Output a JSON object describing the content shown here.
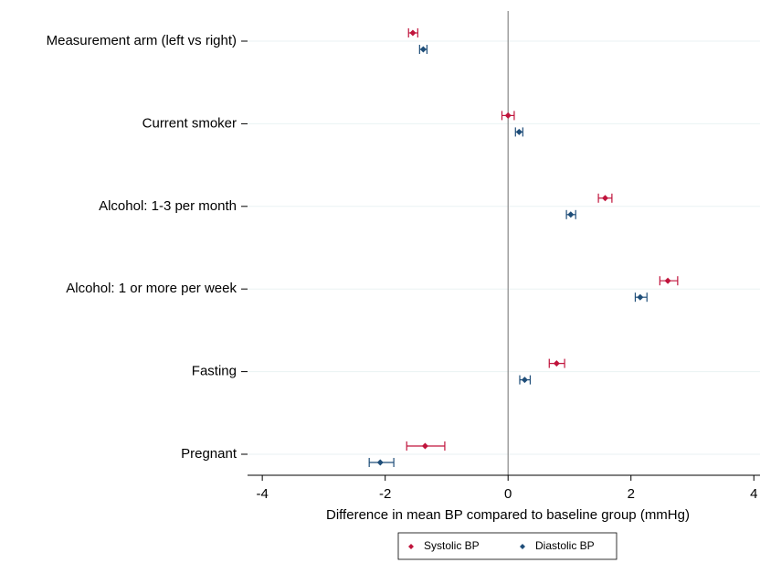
{
  "chart_data": {
    "type": "forest",
    "xlabel": "Difference in mean BP compared to baseline group (mmHg)",
    "categories": [
      "Measurement arm (left vs right)",
      "Current smoker",
      "Alcohol: 1-3 per month",
      "Alcohol: 1 or more per week",
      "Fasting",
      "Pregnant"
    ],
    "series": [
      {
        "name": "Systolic BP",
        "color": "#c0143c",
        "values": [
          -1.55,
          0.0,
          1.58,
          2.6,
          0.79,
          -1.35
        ],
        "ci_low": [
          -1.62,
          -0.1,
          1.47,
          2.47,
          0.67,
          -1.65
        ],
        "ci_high": [
          -1.47,
          0.1,
          1.69,
          2.76,
          0.92,
          -1.03
        ]
      },
      {
        "name": "Diastolic BP",
        "color": "#1f4e79",
        "values": [
          -1.38,
          0.18,
          1.02,
          2.15,
          0.27,
          -2.08
        ],
        "ci_low": [
          -1.44,
          0.12,
          0.95,
          2.07,
          0.19,
          -2.26
        ],
        "ci_high": [
          -1.32,
          0.24,
          1.1,
          2.26,
          0.36,
          -1.86
        ]
      }
    ],
    "xlim": [
      -4.24,
      4.1
    ],
    "xticks": [
      -4,
      -2,
      0,
      2,
      4
    ],
    "xline": 0,
    "grid": true
  }
}
